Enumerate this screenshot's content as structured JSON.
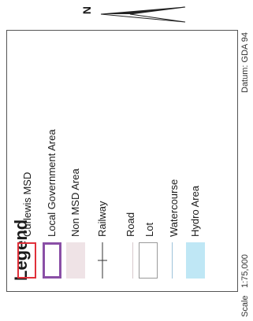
{
  "north": {
    "letter": "N"
  },
  "legend": {
    "title": "Legend",
    "items": [
      {
        "label": "Curlewis MSD",
        "symbol": "outline-red",
        "color": "#e0303a"
      },
      {
        "label": "Local Government Area",
        "symbol": "outline-purple",
        "color": "#8a4fa6"
      },
      {
        "label": "Non MSD Area",
        "symbol": "fill-pink",
        "color": "#efe3e6"
      },
      {
        "label": "Railway",
        "symbol": "railway-line",
        "color": "#333333"
      },
      {
        "label": "Road",
        "symbol": "thin-line",
        "color": "#d8c9cc"
      },
      {
        "label": "Lot",
        "symbol": "outline-grey",
        "color": "#9a9a9a"
      },
      {
        "label": "Watercourse",
        "symbol": "blue-line",
        "color": "#9ec3da"
      },
      {
        "label": "Hydro Area",
        "symbol": "fill-blue",
        "color": "#bfe7f5"
      }
    ]
  },
  "footer": {
    "scale_label": "Scale",
    "scale_value": "1:75,000",
    "datum": "Datum: GDA 94"
  }
}
